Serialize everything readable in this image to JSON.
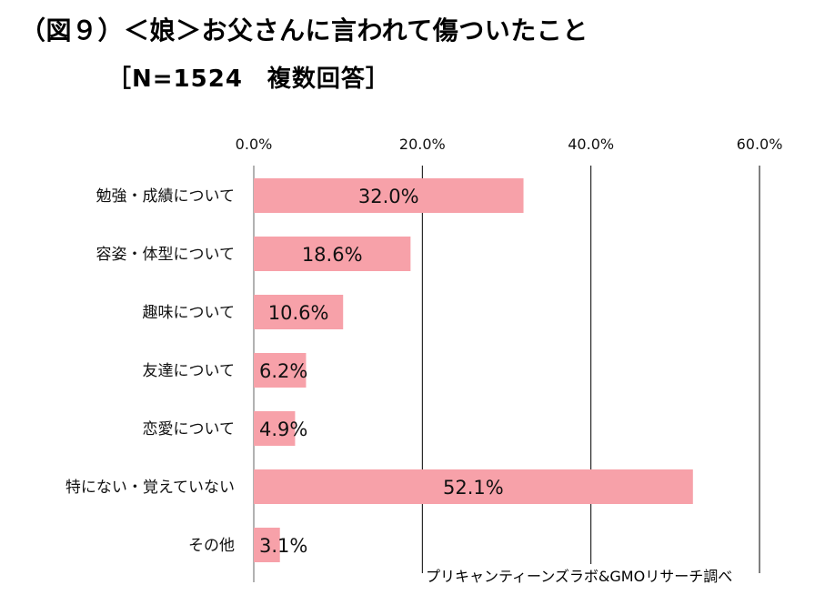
{
  "title": "（図９）＜娘＞お父さんに言われて傷ついたこと",
  "subtitle": "［N=1524　複数回答］",
  "source": "プリキャンティーンズラボ&GMOリサーチ調べ",
  "colors": {
    "bar": "#f7a1a9",
    "grid": "#000000",
    "axis": "#999999"
  },
  "chart_data": {
    "type": "bar",
    "orientation": "horizontal",
    "categories": [
      "勉強・成績について",
      "容姿・体型について",
      "趣味について",
      "友達について",
      "恋愛について",
      "特にない・覚えていない",
      "その他"
    ],
    "values": [
      32.0,
      18.6,
      10.6,
      6.2,
      4.9,
      52.1,
      3.1
    ],
    "value_labels": [
      "32.0%",
      "18.6%",
      "10.6%",
      "6.2%",
      "4.9%",
      "52.1%",
      "3.1%"
    ],
    "xlim": [
      0,
      60
    ],
    "ticks": [
      0,
      20,
      40,
      60
    ],
    "tick_labels": [
      "0.0%",
      "20.0%",
      "40.0%",
      "60.0%"
    ],
    "x_axis_position": "top",
    "grid": true
  }
}
